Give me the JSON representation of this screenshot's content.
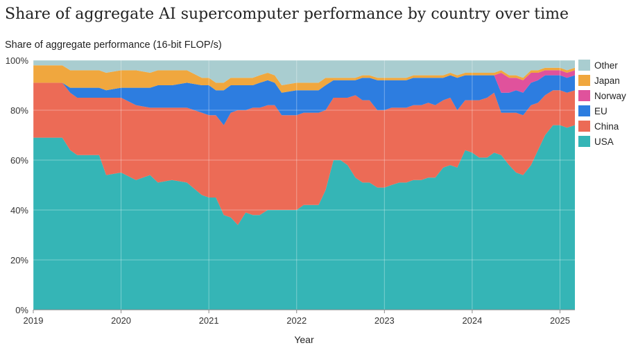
{
  "chart_data": {
    "type": "area",
    "stacked": true,
    "normalized": true,
    "title": "Share of aggregate AI supercomputer performance by country over time",
    "ylabel": "Share of aggregate performance (16-bit FLOP/s)",
    "xlabel": "Year",
    "xlim": [
      2019.0,
      2025.17
    ],
    "ylim": [
      0,
      100
    ],
    "x_ticks": [
      2019,
      2020,
      2021,
      2022,
      2023,
      2024,
      2025
    ],
    "y_ticks": [
      0,
      20,
      40,
      60,
      80,
      100
    ],
    "y_tick_labels": [
      "0%",
      "20%",
      "40%",
      "60%",
      "80%",
      "100%"
    ],
    "legend_position": "right",
    "x": [
      2019.0,
      2019.33,
      2019.42,
      2019.5,
      2019.75,
      2019.83,
      2020.0,
      2020.17,
      2020.33,
      2020.42,
      2020.58,
      2020.75,
      2020.92,
      2021.0,
      2021.08,
      2021.17,
      2021.25,
      2021.33,
      2021.42,
      2021.5,
      2021.58,
      2021.67,
      2021.75,
      2021.83,
      2022.0,
      2022.08,
      2022.25,
      2022.33,
      2022.42,
      2022.5,
      2022.58,
      2022.67,
      2022.75,
      2022.83,
      2022.92,
      2023.0,
      2023.08,
      2023.17,
      2023.25,
      2023.33,
      2023.42,
      2023.5,
      2023.58,
      2023.67,
      2023.75,
      2023.83,
      2023.92,
      2024.0,
      2024.08,
      2024.17,
      2024.25,
      2024.33,
      2024.42,
      2024.5,
      2024.58,
      2024.67,
      2024.75,
      2024.83,
      2024.92,
      2025.0,
      2025.08,
      2025.17
    ],
    "series": [
      {
        "name": "USA",
        "color": "#35b5b6",
        "values": [
          69,
          69,
          64,
          62,
          62,
          54,
          55,
          52,
          54,
          51,
          52,
          51,
          46,
          45,
          45,
          38,
          37,
          34,
          39,
          38,
          38,
          40,
          40,
          40,
          40,
          42,
          42,
          48,
          60,
          60,
          58,
          53,
          51,
          51,
          49,
          49,
          50,
          51,
          51,
          52,
          52,
          53,
          53,
          57,
          58,
          57,
          64,
          63,
          61,
          61,
          63,
          62,
          58,
          55,
          54,
          58,
          64,
          70,
          74,
          74,
          73,
          74
        ]
      },
      {
        "name": "China",
        "color": "#ec6b56",
        "values": [
          22,
          22,
          23,
          23,
          23,
          31,
          30,
          30,
          27,
          30,
          29,
          30,
          33,
          33,
          33,
          36,
          42,
          46,
          41,
          43,
          43,
          42,
          42,
          38,
          38,
          37,
          37,
          32,
          25,
          25,
          27,
          33,
          33,
          33,
          31,
          31,
          31,
          30,
          30,
          30,
          30,
          30,
          29,
          27,
          27,
          23,
          20,
          21,
          23,
          24,
          24,
          17,
          21,
          24,
          24,
          24,
          19,
          16,
          14,
          14,
          14,
          14
        ]
      },
      {
        "name": "EU",
        "color": "#2d7de0",
        "values": [
          0,
          0,
          2,
          4,
          4,
          3,
          4,
          7,
          8,
          9,
          9,
          10,
          11,
          12,
          10,
          14,
          11,
          10,
          10,
          9,
          10,
          10,
          9,
          9,
          10,
          9,
          9,
          10,
          7,
          7,
          7,
          6,
          9,
          9,
          12,
          12,
          11,
          11,
          11,
          11,
          11,
          10,
          11,
          9,
          9,
          13,
          10,
          10,
          10,
          9,
          7,
          8,
          8,
          9,
          9,
          9,
          9,
          8,
          6,
          6,
          6,
          6
        ]
      },
      {
        "name": "Norway",
        "color": "#e0529c",
        "values": [
          0,
          0,
          0,
          0,
          0,
          0,
          0,
          0,
          0,
          0,
          0,
          0,
          0,
          0,
          0,
          0,
          0,
          0,
          0,
          0,
          0,
          0,
          0,
          0,
          0,
          0,
          0,
          0,
          0,
          0,
          0,
          0,
          0,
          0,
          0,
          0,
          0,
          0,
          0,
          0,
          0,
          0,
          0,
          0,
          0,
          0,
          0,
          0,
          0,
          0,
          0,
          8,
          6,
          5,
          5,
          4,
          3,
          2,
          2,
          2,
          2,
          2
        ]
      },
      {
        "name": "Japan",
        "color": "#f0a73e",
        "values": [
          7,
          7,
          7,
          7,
          7,
          7,
          7,
          7,
          6,
          6,
          6,
          5,
          3,
          3,
          3,
          3,
          3,
          3,
          3,
          3,
          3,
          3,
          3,
          3,
          3,
          3,
          3,
          3,
          1,
          1,
          1,
          1,
          1,
          1,
          1,
          1,
          1,
          1,
          1,
          1,
          1,
          1,
          1,
          1,
          1,
          1,
          1,
          1,
          1,
          1,
          1,
          1,
          1,
          1,
          1,
          1,
          1,
          1,
          1,
          1,
          1,
          1
        ]
      },
      {
        "name": "Other",
        "color": "#a9cdd0",
        "values": [
          2,
          2,
          4,
          4,
          4,
          5,
          4,
          4,
          5,
          4,
          4,
          4,
          7,
          7,
          9,
          9,
          7,
          7,
          7,
          7,
          6,
          5,
          6,
          10,
          9,
          9,
          9,
          7,
          7,
          7,
          7,
          7,
          6,
          6,
          7,
          7,
          7,
          7,
          7,
          6,
          6,
          6,
          6,
          6,
          5,
          6,
          5,
          5,
          5,
          5,
          5,
          4,
          6,
          6,
          7,
          4,
          4,
          3,
          3,
          3,
          4,
          3
        ]
      }
    ]
  }
}
